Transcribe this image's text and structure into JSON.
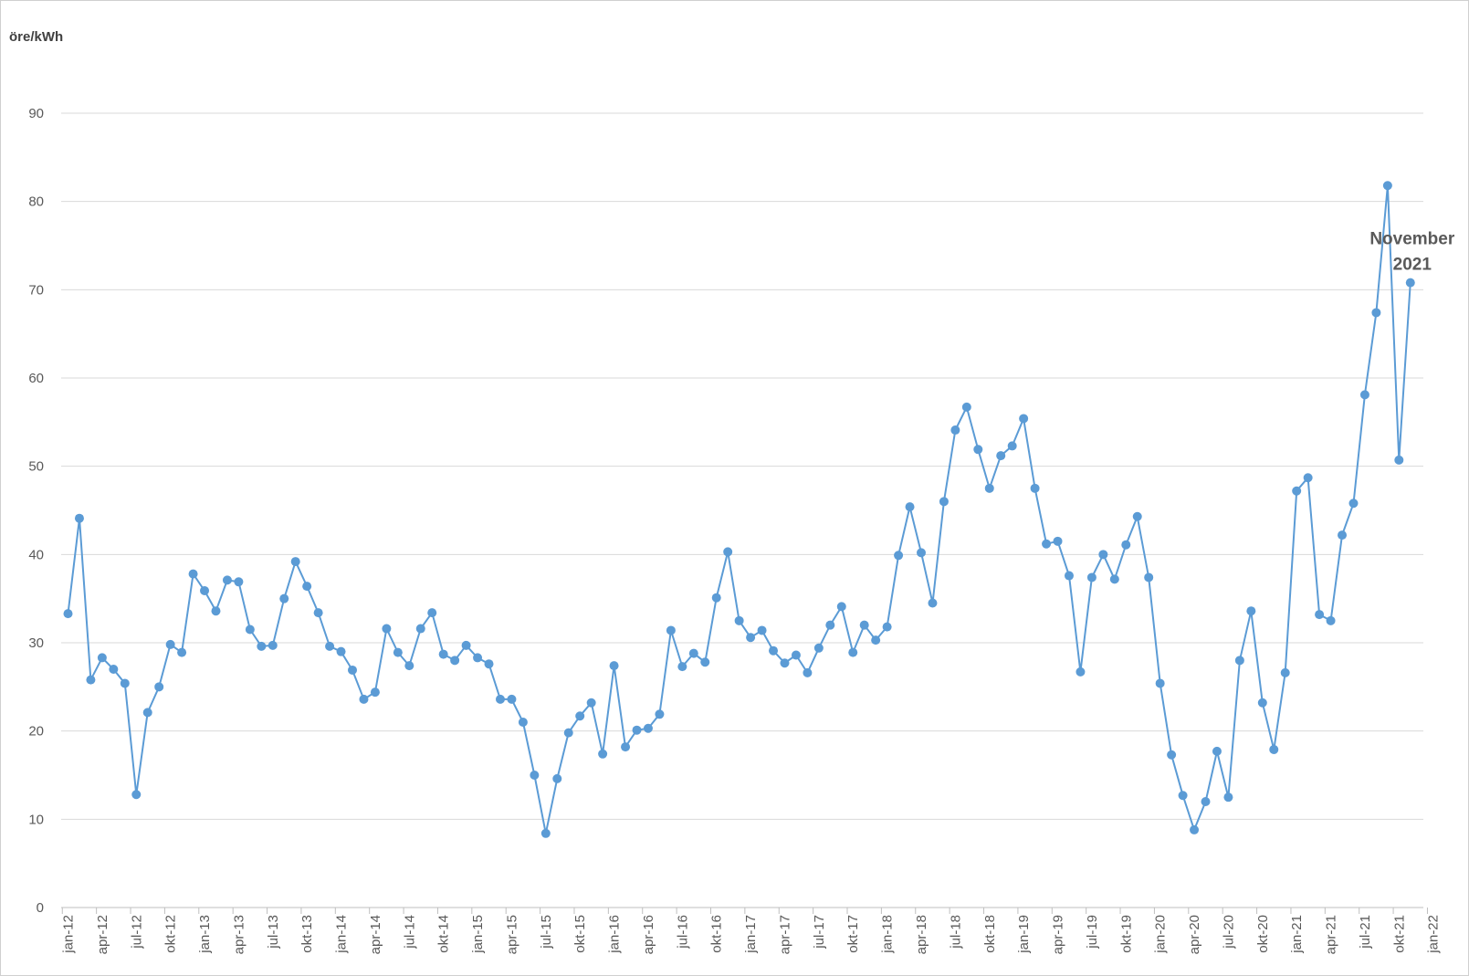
{
  "chart_data": {
    "type": "line",
    "ylabel": "öre/kWh",
    "ylim": [
      0,
      90
    ],
    "yticks": [
      0,
      10,
      20,
      30,
      40,
      50,
      60,
      70,
      80,
      90
    ],
    "grid": true,
    "series_color": "#5b9bd5",
    "x_tick_labels": [
      "jan-12",
      "apr-12",
      "jul-12",
      "okt-12",
      "jan-13",
      "apr-13",
      "jul-13",
      "okt-13",
      "jan-14",
      "apr-14",
      "jul-14",
      "okt-14",
      "jan-15",
      "apr-15",
      "jul-15",
      "okt-15",
      "jan-16",
      "apr-16",
      "jul-16",
      "okt-16",
      "jan-17",
      "apr-17",
      "jul-17",
      "okt-17",
      "jan-18",
      "apr-18",
      "jul-18",
      "okt-18",
      "jan-19",
      "apr-19",
      "jul-19",
      "okt-19",
      "jan-20",
      "apr-20",
      "jul-20",
      "okt-20",
      "jan-21",
      "apr-21",
      "jul-21",
      "okt-21",
      "jan-22"
    ],
    "annotation": {
      "lines": [
        "November",
        "2021"
      ],
      "point_index": 118
    },
    "series": [
      {
        "x_start": "jan-12",
        "values": [
          33.3,
          44.1,
          25.8,
          28.3,
          27.0,
          25.4,
          12.8,
          22.1,
          25.0,
          29.8,
          28.9,
          37.8,
          35.9,
          33.6,
          37.1,
          36.9,
          31.5,
          29.6,
          29.7,
          35.0,
          39.2,
          36.4,
          33.4,
          29.6,
          29.0,
          26.9,
          23.6,
          24.4,
          31.6,
          28.9,
          27.4,
          31.6,
          33.4,
          28.7,
          28.0,
          29.7,
          28.3,
          27.6,
          23.6,
          23.6,
          21.0,
          15.0,
          8.4,
          14.6,
          19.8,
          21.7,
          23.2,
          17.4,
          27.4,
          18.2,
          20.1,
          20.3,
          21.9,
          31.4,
          27.3,
          28.8,
          27.8,
          35.1,
          40.3,
          32.5,
          30.6,
          31.4,
          29.1,
          27.7,
          28.6,
          26.6,
          29.4,
          32.0,
          34.1,
          28.9,
          32.0,
          30.3,
          31.8,
          39.9,
          45.4,
          40.2,
          34.5,
          46.0,
          54.1,
          56.7,
          51.9,
          47.5,
          51.2,
          52.3,
          55.4,
          47.5,
          41.2,
          41.5,
          37.6,
          26.7,
          37.4,
          40.0,
          37.2,
          41.1,
          44.3,
          37.4,
          25.4,
          17.3,
          12.7,
          8.8,
          12.0,
          17.7,
          12.5,
          28.0,
          33.6,
          23.2,
          17.9,
          26.6,
          47.2,
          48.7,
          33.2,
          32.5,
          42.2,
          45.8,
          58.1,
          67.4,
          81.8,
          50.7,
          70.8
        ]
      }
    ]
  }
}
